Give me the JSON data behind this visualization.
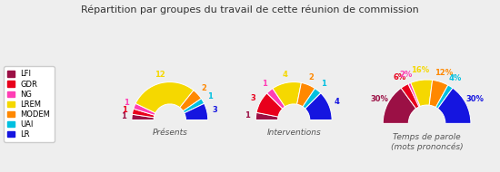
{
  "title": "Répartition par groupes du travail de cette réunion de commission",
  "groups": [
    "LFI",
    "GDR",
    "NG",
    "LREM",
    "MODEM",
    "UAI",
    "LR"
  ],
  "colors": [
    "#9b1045",
    "#e8001c",
    "#ff3eb5",
    "#f5d800",
    "#ff8800",
    "#00c0e0",
    "#1515e0"
  ],
  "presents": [
    1,
    1,
    1,
    12,
    2,
    1,
    3
  ],
  "interventions": [
    1,
    3,
    1,
    4,
    2,
    1,
    4
  ],
  "temps_parole": [
    30,
    6,
    2,
    16,
    12,
    4,
    30
  ],
  "subtitle1": "Présents",
  "subtitle2": "Interventions",
  "subtitle3": "Temps de parole\n(mots prononcés)",
  "bg_color": "#eeeeee",
  "title_color": "#333333",
  "subtitle_color": "#555555"
}
